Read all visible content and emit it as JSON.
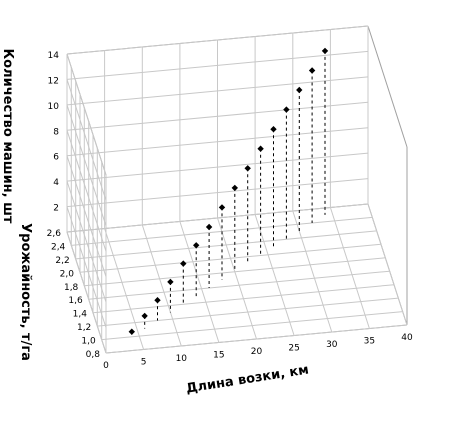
{
  "chart_data": {
    "type": "scatter",
    "title": "",
    "xlabel": "Длина возки, км",
    "ylabel": "Урожайность, т/га",
    "zlabel": "Количество машин, шт",
    "x_ticks": [
      "0",
      "5",
      "10",
      "15",
      "20",
      "25",
      "30",
      "35",
      "40"
    ],
    "y_ticks": [
      "0,8",
      "1,0",
      "1,2",
      "1,4",
      "1,6",
      "1,8",
      "2,0",
      "2,2",
      "2,4",
      "2,6"
    ],
    "z_ticks": [
      "2",
      "4",
      "6",
      "8",
      "10",
      "12",
      "14"
    ],
    "xlim": [
      0,
      40
    ],
    "ylim": [
      0.8,
      2.6
    ],
    "zlim": [
      0,
      14
    ],
    "grid": true,
    "points": [
      {
        "x": 4,
        "y": 1.0,
        "z": 0.4
      },
      {
        "x": 6,
        "y": 1.1,
        "z": 1.0
      },
      {
        "x": 8,
        "y": 1.2,
        "z": 1.6
      },
      {
        "x": 10,
        "y": 1.3,
        "z": 2.4
      },
      {
        "x": 12,
        "y": 1.4,
        "z": 3.2
      },
      {
        "x": 14,
        "y": 1.5,
        "z": 4.0
      },
      {
        "x": 16,
        "y": 1.6,
        "z": 4.8
      },
      {
        "x": 18,
        "y": 1.7,
        "z": 5.7
      },
      {
        "x": 20,
        "y": 1.8,
        "z": 6.6
      },
      {
        "x": 22,
        "y": 1.9,
        "z": 7.5
      },
      {
        "x": 24,
        "y": 2.0,
        "z": 8.4
      },
      {
        "x": 26,
        "y": 2.1,
        "z": 9.3
      },
      {
        "x": 28,
        "y": 2.2,
        "z": 10.2
      },
      {
        "x": 30,
        "y": 2.3,
        "z": 11.1
      },
      {
        "x": 32,
        "y": 2.4,
        "z": 12.0
      },
      {
        "x": 34,
        "y": 2.5,
        "z": 12.9
      }
    ]
  }
}
